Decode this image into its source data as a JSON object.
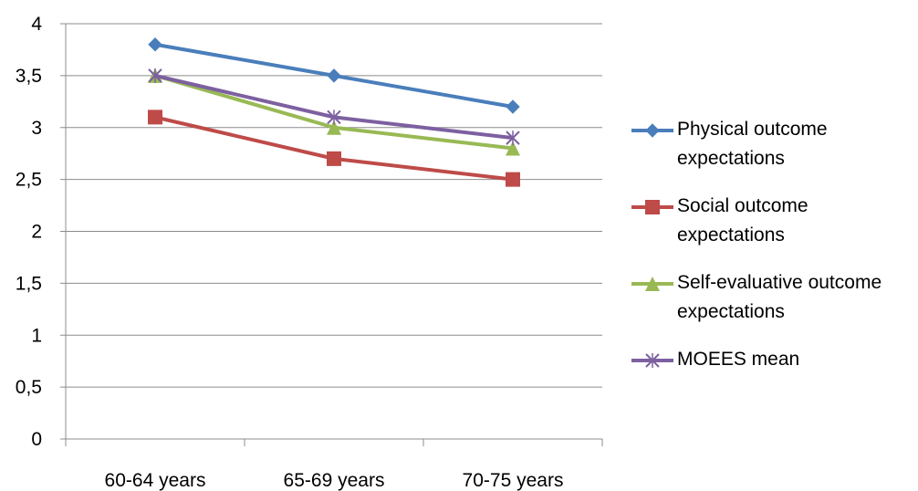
{
  "chart_data": {
    "type": "line",
    "categories": [
      "60-64 years",
      "65-69 years",
      "70-75 years"
    ],
    "series": [
      {
        "name": "Physical outcome expectations",
        "values": [
          3.8,
          3.5,
          3.2
        ],
        "color": "#4a7ebb",
        "marker": "diamond"
      },
      {
        "name": "Social outcome expectations",
        "values": [
          3.1,
          2.7,
          2.5
        ],
        "color": "#be4b48",
        "marker": "square"
      },
      {
        "name": "Self-evaluative outcome expectations",
        "values": [
          3.5,
          3.0,
          2.8
        ],
        "color": "#98b954",
        "marker": "triangle"
      },
      {
        "name": "MOEES mean",
        "values": [
          3.5,
          3.1,
          2.9
        ],
        "color": "#7d60a0",
        "marker": "x"
      }
    ],
    "ylim": [
      0,
      4
    ],
    "yticks": [
      0,
      0.5,
      1,
      1.5,
      2,
      2.5,
      3,
      3.5,
      4
    ],
    "ytick_labels": [
      "0",
      "0,5",
      "1",
      "1,5",
      "2",
      "2,5",
      "3",
      "3,5",
      "4"
    ],
    "grid": true,
    "legend": "right"
  }
}
